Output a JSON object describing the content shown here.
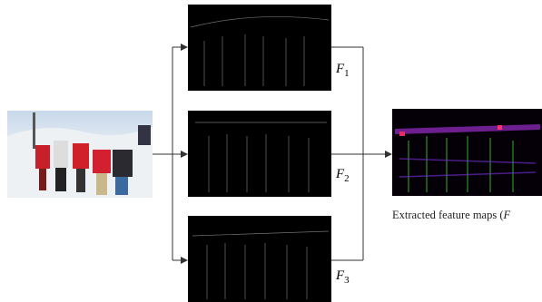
{
  "nodes": [
    {
      "label": "F",
      "subscript": "1"
    },
    {
      "label": "F",
      "subscript": "2"
    },
    {
      "label": "F",
      "subscript": "3"
    }
  ],
  "caption": {
    "text": "Extracted feature maps (",
    "symbol": "F"
  }
}
